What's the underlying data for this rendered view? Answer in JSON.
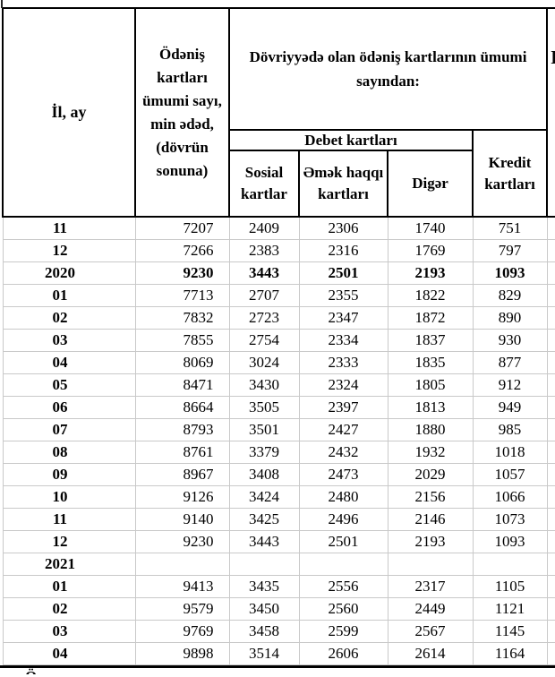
{
  "header": {
    "col_year_month": "İl, ay",
    "col_total": "Ödəniş kartları ümumi sayı, min ədəd, (dövrün sonuna)",
    "group_circulation": "Dövriyyədə olan ödəniş kartlarının ümumi sayından:",
    "group_debit": "Debet kartları",
    "col_social": "Sosial kartlar",
    "col_salary": "Əmək haqqı kartları",
    "col_other": "Digər",
    "col_credit": "Kredit kartları",
    "right_clipped_text": "I"
  },
  "rows": [
    {
      "label": "11",
      "values": [
        "7207",
        "2409",
        "2306",
        "1740",
        "751"
      ],
      "bold": false
    },
    {
      "label": "12",
      "values": [
        "7266",
        "2383",
        "2316",
        "1769",
        "797"
      ],
      "bold": false
    },
    {
      "label": "2020",
      "values": [
        "9230",
        "3443",
        "2501",
        "2193",
        "1093"
      ],
      "bold": true
    },
    {
      "label": "01",
      "values": [
        "7713",
        "2707",
        "2355",
        "1822",
        "829"
      ],
      "bold": false
    },
    {
      "label": "02",
      "values": [
        "7832",
        "2723",
        "2347",
        "1872",
        "890"
      ],
      "bold": false
    },
    {
      "label": "03",
      "values": [
        "7855",
        "2754",
        "2334",
        "1837",
        "930"
      ],
      "bold": false
    },
    {
      "label": "04",
      "values": [
        "8069",
        "3024",
        "2333",
        "1835",
        "877"
      ],
      "bold": false
    },
    {
      "label": "05",
      "values": [
        "8471",
        "3430",
        "2324",
        "1805",
        "912"
      ],
      "bold": false
    },
    {
      "label": "06",
      "values": [
        "8664",
        "3505",
        "2397",
        "1813",
        "949"
      ],
      "bold": false
    },
    {
      "label": "07",
      "values": [
        "8793",
        "3501",
        "2427",
        "1880",
        "985"
      ],
      "bold": false
    },
    {
      "label": "08",
      "values": [
        "8761",
        "3379",
        "2432",
        "1932",
        "1018"
      ],
      "bold": false
    },
    {
      "label": "09",
      "values": [
        "8967",
        "3408",
        "2473",
        "2029",
        "1057"
      ],
      "bold": false
    },
    {
      "label": "10",
      "values": [
        "9126",
        "3424",
        "2480",
        "2156",
        "1066"
      ],
      "bold": false
    },
    {
      "label": "11",
      "values": [
        "9140",
        "3425",
        "2496",
        "2146",
        "1073"
      ],
      "bold": false
    },
    {
      "label": "12",
      "values": [
        "9230",
        "3443",
        "2501",
        "2193",
        "1093"
      ],
      "bold": false
    },
    {
      "label": "2021",
      "values": [
        "",
        "",
        "",
        "",
        ""
      ],
      "bold": true
    },
    {
      "label": "01",
      "values": [
        "9413",
        "3435",
        "2556",
        "2317",
        "1105"
      ],
      "bold": false
    },
    {
      "label": "02",
      "values": [
        "9579",
        "3450",
        "2560",
        "2449",
        "1121"
      ],
      "bold": false
    },
    {
      "label": "03",
      "values": [
        "9769",
        "3458",
        "2599",
        "2567",
        "1145"
      ],
      "bold": false
    },
    {
      "label": "04",
      "values": [
        "9898",
        "3514",
        "2606",
        "2614",
        "1164"
      ],
      "bold": false
    }
  ],
  "footnote_clipped": "Ö",
  "colors": {
    "border": "#000000",
    "grid": "#c9c9c9",
    "text": "#000000",
    "background": "#ffffff"
  }
}
